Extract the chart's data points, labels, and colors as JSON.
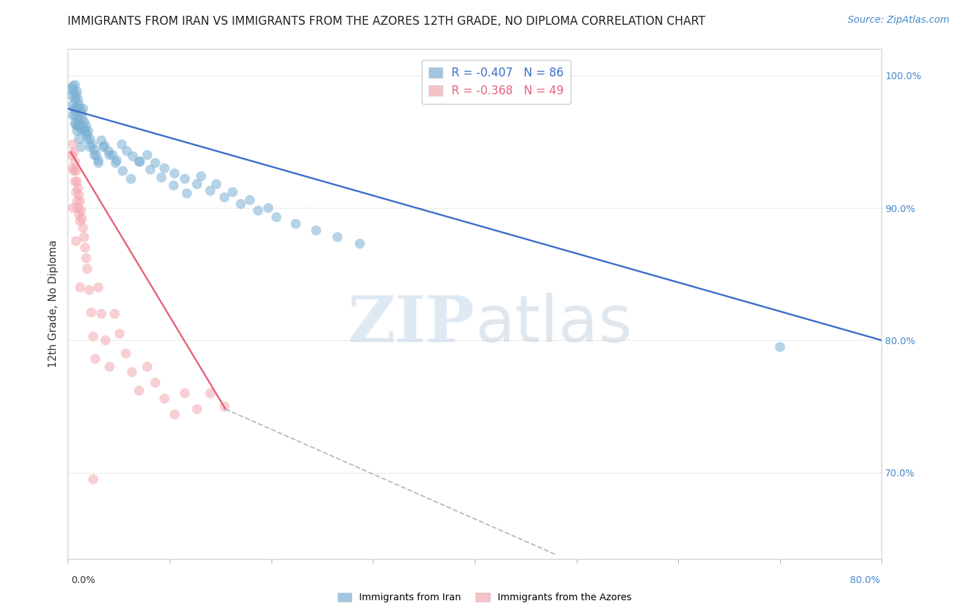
{
  "title": "IMMIGRANTS FROM IRAN VS IMMIGRANTS FROM THE AZORES 12TH GRADE, NO DIPLOMA CORRELATION CHART",
  "source": "Source: ZipAtlas.com",
  "ylabel": "12th Grade, No Diploma",
  "ytick_labels": [
    "100.0%",
    "90.0%",
    "80.0%",
    "70.0%"
  ],
  "ytick_values": [
    1.0,
    0.9,
    0.8,
    0.7
  ],
  "xlim": [
    0.0,
    0.8
  ],
  "ylim": [
    0.635,
    1.02
  ],
  "legend_iran_R": "-0.407",
  "legend_iran_N": "86",
  "legend_azores_R": "-0.368",
  "legend_azores_N": "49",
  "iran_color": "#7BAFD4",
  "azores_color": "#F4A8B0",
  "trendline_iran_color": "#3B6EC8",
  "trendline_azores_color": "#E8607A",
  "trendline_dashed_color": "#BBBBBB",
  "background_color": "#FFFFFF",
  "iran_scatter_x": [
    0.003,
    0.004,
    0.005,
    0.005,
    0.006,
    0.006,
    0.007,
    0.007,
    0.007,
    0.008,
    0.008,
    0.008,
    0.009,
    0.009,
    0.009,
    0.01,
    0.01,
    0.011,
    0.011,
    0.012,
    0.012,
    0.013,
    0.013,
    0.014,
    0.015,
    0.015,
    0.016,
    0.017,
    0.018,
    0.019,
    0.02,
    0.022,
    0.024,
    0.026,
    0.028,
    0.03,
    0.033,
    0.036,
    0.04,
    0.044,
    0.048,
    0.053,
    0.058,
    0.064,
    0.07,
    0.078,
    0.086,
    0.095,
    0.105,
    0.115,
    0.127,
    0.14,
    0.154,
    0.17,
    0.187,
    0.205,
    0.224,
    0.244,
    0.265,
    0.287,
    0.005,
    0.007,
    0.009,
    0.011,
    0.013,
    0.016,
    0.019,
    0.022,
    0.026,
    0.03,
    0.035,
    0.041,
    0.047,
    0.054,
    0.062,
    0.071,
    0.081,
    0.092,
    0.104,
    0.117,
    0.131,
    0.146,
    0.162,
    0.179,
    0.197,
    0.7
  ],
  "iran_scatter_y": [
    0.99,
    0.985,
    0.992,
    0.978,
    0.988,
    0.975,
    0.993,
    0.982,
    0.97,
    0.985,
    0.975,
    0.963,
    0.988,
    0.975,
    0.962,
    0.982,
    0.968,
    0.978,
    0.965,
    0.975,
    0.962,
    0.972,
    0.959,
    0.968,
    0.975,
    0.961,
    0.965,
    0.958,
    0.962,
    0.955,
    0.958,
    0.952,
    0.948,
    0.944,
    0.94,
    0.936,
    0.951,
    0.947,
    0.943,
    0.94,
    0.936,
    0.948,
    0.943,
    0.939,
    0.935,
    0.94,
    0.934,
    0.93,
    0.926,
    0.922,
    0.918,
    0.913,
    0.908,
    0.903,
    0.898,
    0.893,
    0.888,
    0.883,
    0.878,
    0.873,
    0.97,
    0.964,
    0.958,
    0.952,
    0.946,
    0.958,
    0.952,
    0.946,
    0.94,
    0.934,
    0.946,
    0.94,
    0.934,
    0.928,
    0.922,
    0.935,
    0.929,
    0.923,
    0.917,
    0.911,
    0.924,
    0.918,
    0.912,
    0.906,
    0.9,
    0.795
  ],
  "azores_scatter_x": [
    0.004,
    0.005,
    0.005,
    0.006,
    0.006,
    0.007,
    0.007,
    0.008,
    0.008,
    0.009,
    0.009,
    0.01,
    0.01,
    0.011,
    0.011,
    0.012,
    0.012,
    0.013,
    0.014,
    0.015,
    0.016,
    0.017,
    0.018,
    0.019,
    0.021,
    0.023,
    0.025,
    0.027,
    0.03,
    0.033,
    0.037,
    0.041,
    0.046,
    0.051,
    0.057,
    0.063,
    0.07,
    0.078,
    0.086,
    0.095,
    0.105,
    0.115,
    0.127,
    0.14,
    0.154,
    0.005,
    0.008,
    0.012,
    0.025
  ],
  "azores_scatter_y": [
    0.94,
    0.948,
    0.93,
    0.942,
    0.928,
    0.935,
    0.92,
    0.928,
    0.912,
    0.92,
    0.905,
    0.915,
    0.9,
    0.91,
    0.895,
    0.905,
    0.89,
    0.898,
    0.892,
    0.885,
    0.878,
    0.87,
    0.862,
    0.854,
    0.838,
    0.821,
    0.803,
    0.786,
    0.84,
    0.82,
    0.8,
    0.78,
    0.82,
    0.805,
    0.79,
    0.776,
    0.762,
    0.78,
    0.768,
    0.756,
    0.744,
    0.76,
    0.748,
    0.76,
    0.75,
    0.9,
    0.875,
    0.84,
    0.695
  ],
  "trendline_iran_x0": 0.0,
  "trendline_iran_y0": 0.975,
  "trendline_iran_x1": 0.8,
  "trendline_iran_y1": 0.8,
  "trendline_azores_x0": 0.003,
  "trendline_azores_y0": 0.942,
  "trendline_azores_x1": 0.155,
  "trendline_azores_y1": 0.748,
  "trendline_dashed_x0": 0.155,
  "trendline_dashed_y0": 0.748,
  "trendline_dashed_x1": 0.48,
  "trendline_dashed_y1": 0.638,
  "grid_color": "#DDDDDD",
  "title_fontsize": 12,
  "axis_label_fontsize": 11,
  "tick_fontsize": 10,
  "legend_fontsize": 12,
  "source_fontsize": 10
}
